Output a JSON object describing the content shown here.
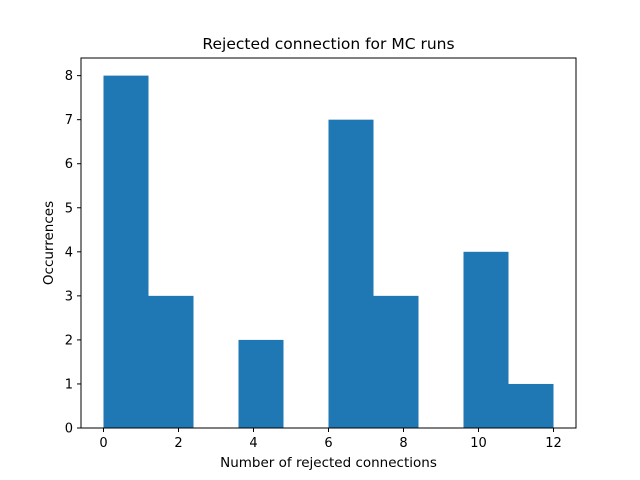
{
  "chart_data": {
    "type": "bar",
    "title": "Rejected connection for MC runs",
    "xlabel": "Number of rejected connections",
    "ylabel": "Occurrences",
    "xlim": [
      -0.6,
      12.6
    ],
    "ylim": [
      0,
      8.4
    ],
    "xticks": [
      "0",
      "2",
      "4",
      "6",
      "8",
      "10",
      "12"
    ],
    "yticks": [
      "0",
      "1",
      "2",
      "3",
      "4",
      "5",
      "6",
      "7",
      "8"
    ],
    "bin_edges": [
      0,
      1.2,
      2.4,
      3.6,
      4.8,
      6.0,
      7.2,
      8.4,
      9.6,
      10.8,
      12.0
    ],
    "values": [
      8,
      3,
      0,
      2,
      0,
      7,
      3,
      0,
      4,
      1
    ],
    "bar_color": "#1f77b4",
    "grid": false,
    "legend": "none"
  }
}
